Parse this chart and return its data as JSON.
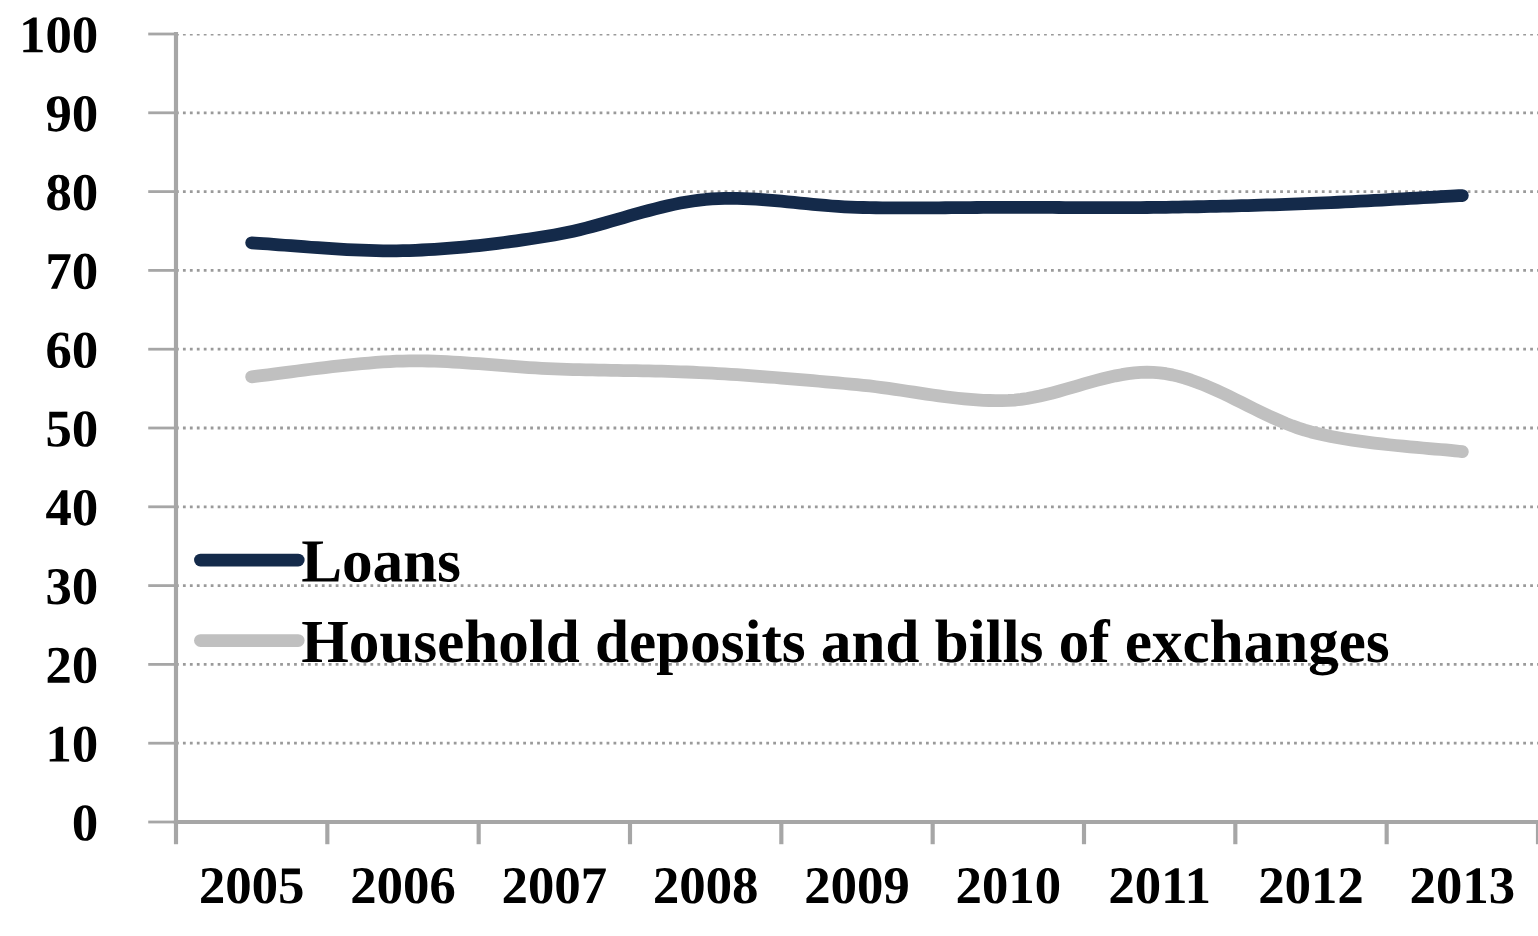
{
  "chart_data": {
    "type": "line",
    "categories": [
      "2005",
      "2006",
      "2007",
      "2008",
      "2009",
      "2010",
      "2011",
      "2012",
      "2013"
    ],
    "series": [
      {
        "name": "Loans",
        "color": "#142a4a",
        "values": [
          73.5,
          72.5,
          74.5,
          79,
          78,
          78,
          78,
          78.5,
          79.5
        ]
      },
      {
        "name": "Household deposits and bills of exchanges",
        "color": "#c0c0c0",
        "values": [
          56.5,
          58.5,
          57.5,
          57,
          55.5,
          53.5,
          57,
          49.5,
          47
        ]
      }
    ],
    "ylim": [
      0,
      100
    ],
    "yticks": [
      0,
      10,
      20,
      30,
      40,
      50,
      60,
      70,
      80,
      90,
      100
    ],
    "grid": "y",
    "legend": "lower left"
  }
}
